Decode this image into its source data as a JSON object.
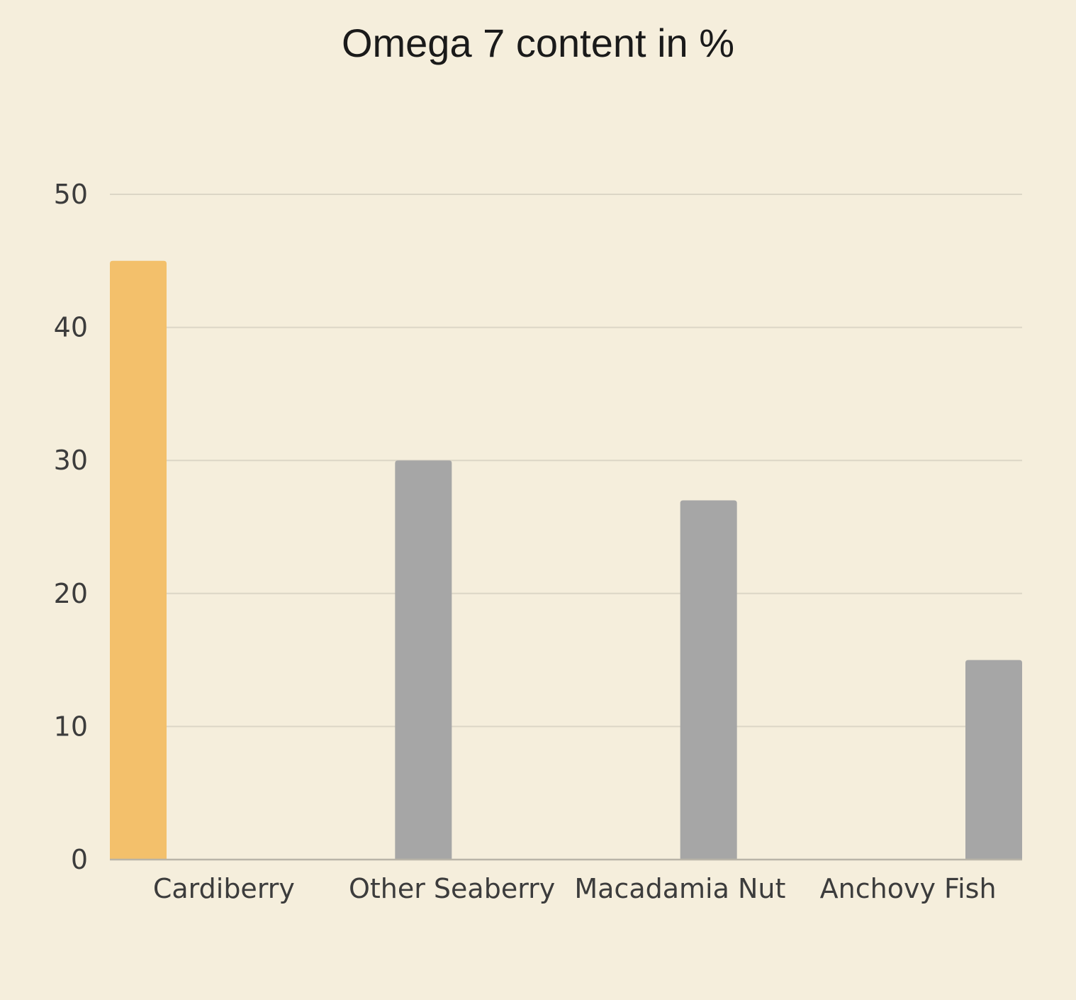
{
  "chart_data": {
    "type": "bar",
    "title": "Omega 7 content in %",
    "xlabel": "",
    "ylabel": "",
    "categories": [
      "Cardiberry",
      "Other Seaberry",
      "Macadamia Nut",
      "Anchovy Fish"
    ],
    "values": [
      45,
      30,
      27,
      15
    ],
    "ylim": [
      0,
      50
    ],
    "yticks": [
      0,
      10,
      20,
      30,
      40,
      50
    ],
    "grid": true,
    "legend": "none",
    "colors": [
      "#f3c06b",
      "#a6a6a6",
      "#a6a6a6",
      "#a6a6a6"
    ],
    "gridline_color": "#dcd6c6",
    "axis_color": "#b9b4a8",
    "background": "#f5eedc"
  }
}
